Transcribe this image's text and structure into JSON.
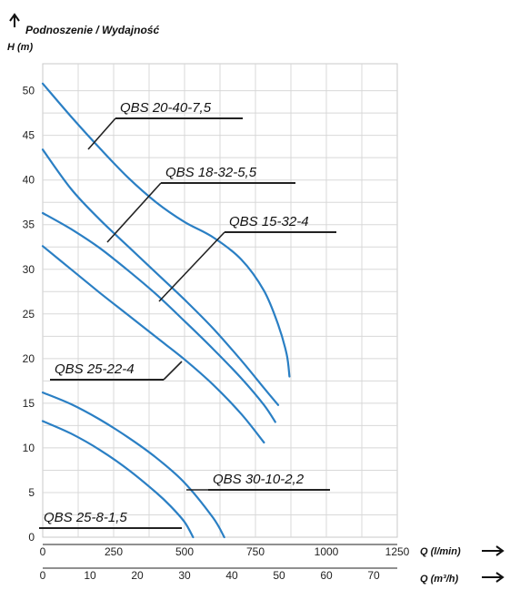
{
  "chart_data": {
    "type": "line",
    "title": "Podnoszenie / Wydajność",
    "ylabel": "H (m)",
    "xlabel": "Q (l/min)",
    "x2label": "Q (m³/h)",
    "xlim": [
      0,
      1250
    ],
    "ylim": [
      0,
      52
    ],
    "x2lim": [
      0,
      75
    ],
    "xticks": [
      "0",
      "250",
      "500",
      "750",
      "1000",
      "1250"
    ],
    "x2ticks": [
      "0",
      "10",
      "20",
      "30",
      "40",
      "50",
      "60",
      "70"
    ],
    "yticks": [
      "0",
      "5",
      "10",
      "15",
      "20",
      "25",
      "30",
      "35",
      "40",
      "45",
      "50"
    ],
    "grid": true,
    "curve_color": "#2a7fc4",
    "series": [
      {
        "name": "QBS 20-40-7,5",
        "x": [
          0,
          100,
          200,
          300,
          400,
          500,
          600,
          700,
          780,
          830,
          860,
          870
        ],
        "y": [
          50.8,
          47.1,
          43.6,
          40.3,
          37.5,
          35.3,
          33.6,
          31.1,
          27.6,
          23.8,
          20.5,
          18.0
        ]
      },
      {
        "name": "QBS 18-32-5,5",
        "x": [
          0,
          100,
          200,
          300,
          400,
          500,
          600,
          700,
          780,
          830
        ],
        "y": [
          43.4,
          39.0,
          35.6,
          32.6,
          29.6,
          26.6,
          23.4,
          19.8,
          16.7,
          14.8
        ]
      },
      {
        "name": "QBS 15-32-4",
        "x": [
          0,
          100,
          200,
          300,
          400,
          500,
          600,
          700,
          780,
          820
        ],
        "y": [
          36.3,
          34.5,
          32.4,
          29.9,
          27.2,
          24.2,
          21.1,
          17.8,
          14.8,
          12.9
        ]
      },
      {
        "name": "QBS 25-22-4",
        "x": [
          0,
          100,
          200,
          300,
          400,
          500,
          600,
          700,
          780
        ],
        "y": [
          32.6,
          30.0,
          27.4,
          24.9,
          22.4,
          19.9,
          17.1,
          13.8,
          10.6
        ]
      },
      {
        "name": "QBS 30-10-2,2",
        "x": [
          0,
          100,
          200,
          300,
          400,
          500,
          600,
          640
        ],
        "y": [
          16.2,
          14.9,
          13.2,
          11.2,
          8.9,
          6.1,
          2.2,
          0
        ]
      },
      {
        "name": "QBS 25-8-1,5",
        "x": [
          0,
          100,
          200,
          300,
          400,
          450,
          500,
          530
        ],
        "y": [
          13.0,
          11.6,
          9.8,
          7.6,
          5.0,
          3.5,
          1.7,
          0
        ]
      }
    ]
  }
}
